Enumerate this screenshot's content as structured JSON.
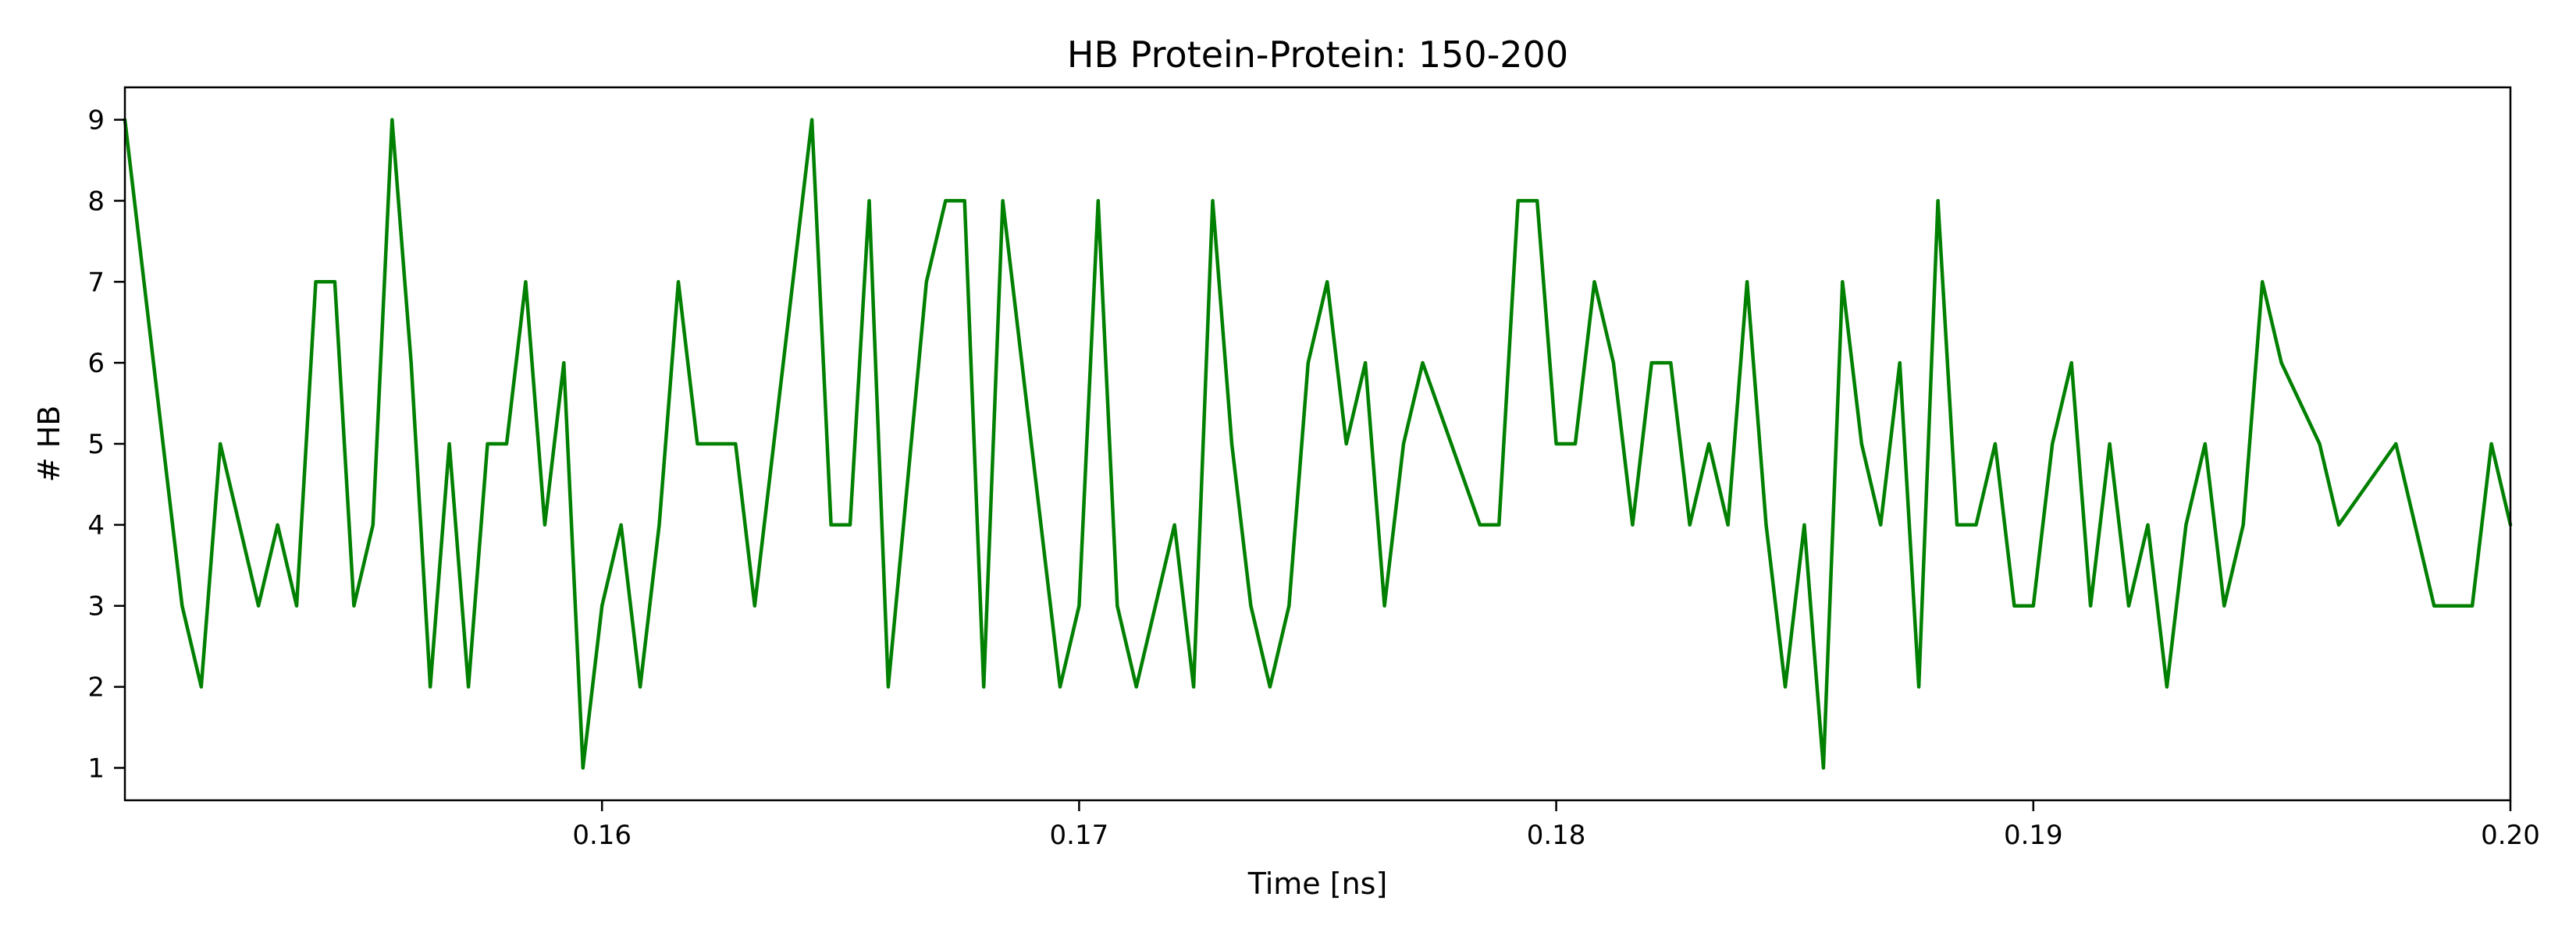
{
  "chart_data": {
    "type": "line",
    "title": "HB Protein-Protein: 150-200",
    "xlabel": "Time [ns]",
    "ylabel": "# HB",
    "xlim": [
      0.15,
      0.2
    ],
    "ylim": [
      0.6,
      9.4
    ],
    "xticks": [
      0.16,
      0.17,
      0.18,
      0.19,
      0.2
    ],
    "xtick_labels": [
      "0.16",
      "0.17",
      "0.18",
      "0.19",
      "0.20"
    ],
    "yticks": [
      1,
      2,
      3,
      4,
      5,
      6,
      7,
      8,
      9
    ],
    "ytick_labels": [
      "1",
      "2",
      "3",
      "4",
      "5",
      "6",
      "7",
      "8",
      "9"
    ],
    "grid": false,
    "series": [
      {
        "color": "#008000",
        "x": [
          0.15,
          0.1512,
          0.1516,
          0.152,
          0.1528,
          0.1532,
          0.1536,
          0.154,
          0.1544,
          0.1548,
          0.1552,
          0.1556,
          0.156,
          0.1564,
          0.1568,
          0.1572,
          0.1576,
          0.158,
          0.1584,
          0.1588,
          0.1592,
          0.1596,
          0.16,
          0.1604,
          0.1608,
          0.1612,
          0.1616,
          0.162,
          0.1628,
          0.1632,
          0.1644,
          0.1648,
          0.1652,
          0.1656,
          0.166,
          0.1668,
          0.1672,
          0.1676,
          0.168,
          0.1684,
          0.1696,
          0.17,
          0.1704,
          0.1708,
          0.1712,
          0.172,
          0.1724,
          0.1728,
          0.1732,
          0.1736,
          0.174,
          0.1744,
          0.1748,
          0.1752,
          0.1756,
          0.176,
          0.1764,
          0.1768,
          0.1772,
          0.1784,
          0.1788,
          0.1792,
          0.1796,
          0.18,
          0.1804,
          0.1808,
          0.1812,
          0.1816,
          0.182,
          0.1824,
          0.1828,
          0.1832,
          0.1836,
          0.184,
          0.1844,
          0.1848,
          0.1852,
          0.1856,
          0.186,
          0.1864,
          0.1868,
          0.1872,
          0.1876,
          0.188,
          0.1884,
          0.1888,
          0.1892,
          0.1896,
          0.19,
          0.1904,
          0.1908,
          0.1912,
          0.1916,
          0.192,
          0.1924,
          0.1928,
          0.1932,
          0.1936,
          0.194,
          0.1944,
          0.1948,
          0.1952,
          0.196,
          0.1964,
          0.1976,
          0.1984,
          0.1992,
          0.1996,
          0.2
        ],
        "y": [
          9,
          3,
          2,
          5,
          3,
          4,
          3,
          7,
          7,
          3,
          4,
          9,
          6,
          2,
          5,
          2,
          5,
          5,
          7,
          4,
          6,
          1,
          3,
          4,
          2,
          4,
          7,
          5,
          5,
          3,
          9,
          4,
          4,
          8,
          2,
          7,
          8,
          8,
          2,
          8,
          2,
          3,
          8,
          3,
          2,
          4,
          2,
          8,
          5,
          3,
          2,
          3,
          6,
          7,
          5,
          6,
          3,
          5,
          6,
          4,
          4,
          8,
          8,
          5,
          5,
          7,
          6,
          4,
          6,
          6,
          4,
          5,
          4,
          7,
          4,
          2,
          4,
          1,
          7,
          5,
          4,
          6,
          2,
          8,
          4,
          4,
          5,
          3,
          3,
          5,
          6,
          3,
          5,
          3,
          4,
          2,
          4,
          5,
          3,
          4,
          7,
          6,
          5,
          4,
          5,
          3,
          3,
          5,
          4
        ]
      }
    ]
  }
}
